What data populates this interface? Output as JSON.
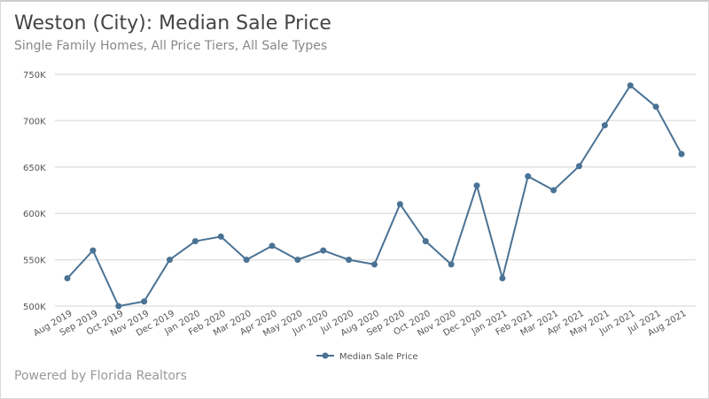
{
  "chart_data": {
    "type": "line",
    "title": "Weston (City): Median Sale Price",
    "subtitle": "Single Family Homes, All Price Tiers, All Sale Types",
    "categories": [
      "Aug 2019",
      "Sep 2019",
      "Oct 2019",
      "Nov 2019",
      "Dec 2019",
      "Jan 2020",
      "Feb 2020",
      "Mar 2020",
      "Apr 2020",
      "May 2020",
      "Jun 2020",
      "Jul 2020",
      "Aug 2020",
      "Sep 2020",
      "Oct 2020",
      "Nov 2020",
      "Dec 2020",
      "Jan 2021",
      "Feb 2021",
      "Mar 2021",
      "Apr 2021",
      "May 2021",
      "Jun 2021",
      "Jul 2021",
      "Aug 2021"
    ],
    "series": [
      {
        "name": "Median Sale Price",
        "color": "#4a7294",
        "values": [
          530000,
          560000,
          500000,
          505000,
          550000,
          570000,
          575000,
          550000,
          565000,
          550000,
          560000,
          550000,
          545000,
          610000,
          570000,
          545000,
          630000,
          530000,
          640000,
          625000,
          651000,
          695000,
          738000,
          715000,
          664000
        ]
      }
    ],
    "yticks": [
      {
        "v": 500000,
        "label": "500K"
      },
      {
        "v": 550000,
        "label": "550K"
      },
      {
        "v": 600000,
        "label": "600K"
      },
      {
        "v": 650000,
        "label": "650K"
      },
      {
        "v": 700000,
        "label": "700K"
      },
      {
        "v": 750000,
        "label": "750K"
      }
    ],
    "ylim": [
      500000,
      750000
    ],
    "grid": true,
    "legend_position": "bottom"
  },
  "footer": "Powered by Florida Realtors"
}
